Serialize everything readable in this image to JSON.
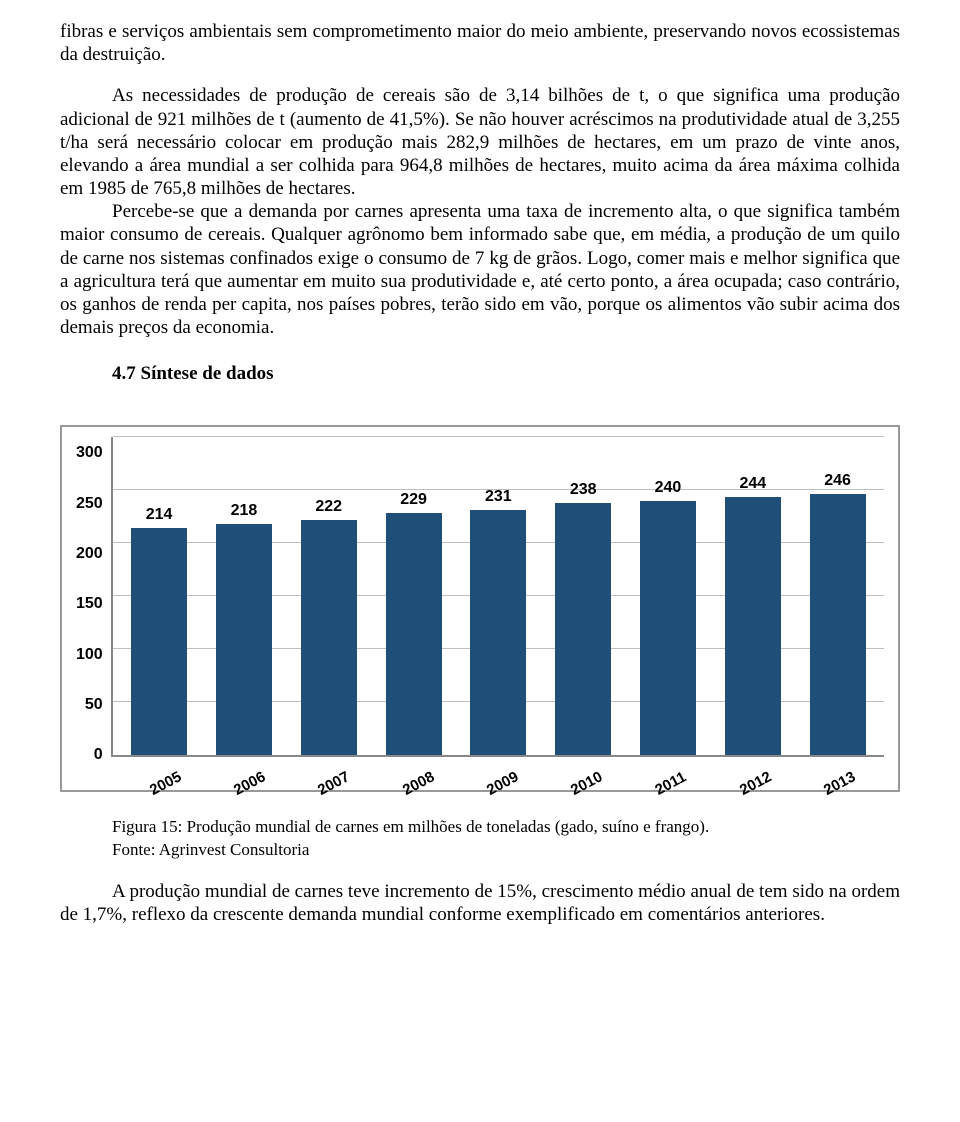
{
  "paragraphs": {
    "p1": "fibras e serviços ambientais sem comprometimento maior do meio ambiente, preservando novos ecossistemas da destruição.",
    "p2": "As necessidades de produção de cereais são de 3,14 bilhões de t, o que significa uma produção adicional de 921 milhões de t (aumento de 41,5%). Se não houver acréscimos na produtividade atual de 3,255 t/ha será necessário colocar em produção mais 282,9 milhões de hectares, em um prazo de vinte anos, elevando a área mundial a ser colhida para 964,8 milhões de hectares, muito acima da área máxima colhida em 1985 de 765,8 milhões de hectares.",
    "p3": "Percebe-se que a demanda por carnes apresenta uma taxa de incremento alta, o que significa também maior consumo de cereais. Qualquer agrônomo bem informado sabe que, em média, a produção de um quilo de carne nos sistemas confinados exige o consumo de 7 kg de grãos. Logo, comer mais e melhor significa que a agricultura terá que aumentar em muito sua produtividade e, até certo ponto, a área ocupada; caso contrário, os ganhos de renda per capita, nos países pobres, terão sido em vão, porque os alimentos vão subir acima dos demais preços da economia."
  },
  "section_heading": "4.7 Síntese de dados",
  "chart": {
    "type": "bar",
    "categories": [
      "2005",
      "2006",
      "2007",
      "2008",
      "2009",
      "2010",
      "2011",
      "2012",
      "2013"
    ],
    "values": [
      214,
      218,
      222,
      229,
      231,
      238,
      240,
      244,
      246
    ],
    "y_ticks": [
      0,
      50,
      100,
      150,
      200,
      250,
      300
    ],
    "ylim_max": 300,
    "bar_color": "#1f4e79",
    "grid_color": "#bfbfbf",
    "axis_color": "#888888",
    "background_color": "#ffffff",
    "label_fontfamily": "Arial",
    "label_fontsize": 16,
    "label_fontweight": "bold",
    "label_color": "#000000",
    "x_tick_rotation_deg": -28
  },
  "caption": {
    "line1": "Figura 15: Produção mundial de carnes em milhões de toneladas (gado, suíno e frango).",
    "line2": "Fonte: Agrinvest Consultoria"
  },
  "closing": "A produção mundial de carnes teve incremento de 15%, crescimento médio anual de tem sido na ordem de 1,7%, reflexo da crescente demanda mundial conforme exemplificado em comentários anteriores."
}
